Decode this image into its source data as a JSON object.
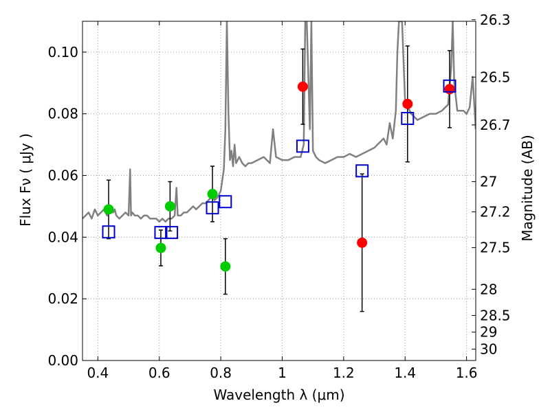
{
  "chart_data": {
    "type": "scatter",
    "xlabel": "Wavelength  λ (μm)",
    "ylabel": "Flux  Fν  ( μJy )",
    "ylabel_right": "Magnitude (AB)",
    "xlim": [
      0.35,
      1.63
    ],
    "ylim": [
      0.0,
      0.11
    ],
    "grid": true,
    "x_ticks": [
      0.4,
      0.6,
      0.8,
      1.0,
      1.2,
      1.4,
      1.6
    ],
    "x_tick_labels": [
      "0.4",
      "0.6",
      "0.8",
      "1",
      "1.2",
      "1.4",
      "1.6"
    ],
    "y_ticks": [
      0.0,
      0.02,
      0.04,
      0.06,
      0.08,
      0.1
    ],
    "y_tick_labels": [
      "0.00",
      "0.02",
      "0.04",
      "0.06",
      "0.08",
      "0.10"
    ],
    "right_ticks": [
      {
        "label": "26.3",
        "flux": 0.1105
      },
      {
        "label": "26.5",
        "flux": 0.0919
      },
      {
        "label": "26.7",
        "flux": 0.0764
      },
      {
        "label": "27",
        "flux": 0.058
      },
      {
        "label": "27.2",
        "flux": 0.0482
      },
      {
        "label": "27.5",
        "flux": 0.0366
      },
      {
        "label": "28",
        "flux": 0.0231
      },
      {
        "label": "28.5",
        "flux": 0.0146
      },
      {
        "label": "29",
        "flux": 0.0092
      },
      {
        "label": "30",
        "flux": 0.0037
      }
    ],
    "colors": {
      "sed": "#808080",
      "green_points": "#00cc00",
      "red_points": "#ff0000",
      "model_boxes": "#0000cc",
      "error_bars": "#000000",
      "grid": "#999999"
    },
    "sed_curve": {
      "x": [
        0.35,
        0.36,
        0.37,
        0.38,
        0.39,
        0.4,
        0.41,
        0.42,
        0.43,
        0.44,
        0.45,
        0.455,
        0.46,
        0.47,
        0.48,
        0.49,
        0.5,
        0.505,
        0.508,
        0.512,
        0.52,
        0.53,
        0.54,
        0.55,
        0.56,
        0.57,
        0.58,
        0.59,
        0.6,
        0.61,
        0.62,
        0.63,
        0.64,
        0.65,
        0.656,
        0.66,
        0.67,
        0.68,
        0.69,
        0.7,
        0.71,
        0.72,
        0.73,
        0.74,
        0.75,
        0.76,
        0.77,
        0.78,
        0.79,
        0.8,
        0.81,
        0.815,
        0.82,
        0.825,
        0.83,
        0.835,
        0.84,
        0.845,
        0.85,
        0.86,
        0.87,
        0.88,
        0.89,
        0.9,
        0.92,
        0.94,
        0.95,
        0.96,
        0.97,
        0.98,
        1.0,
        1.02,
        1.04,
        1.06,
        1.07,
        1.075,
        1.08,
        1.09,
        1.095,
        1.1,
        1.11,
        1.12,
        1.14,
        1.16,
        1.18,
        1.2,
        1.22,
        1.24,
        1.26,
        1.28,
        1.3,
        1.32,
        1.33,
        1.34,
        1.35,
        1.36,
        1.37,
        1.375,
        1.38,
        1.39,
        1.4,
        1.42,
        1.44,
        1.46,
        1.48,
        1.5,
        1.52,
        1.54,
        1.55,
        1.555,
        1.56,
        1.57,
        1.58,
        1.59,
        1.6,
        1.61,
        1.62,
        1.63
      ],
      "y": [
        0.046,
        0.047,
        0.048,
        0.046,
        0.049,
        0.047,
        0.048,
        0.049,
        0.047,
        0.05,
        0.048,
        0.049,
        0.047,
        0.046,
        0.047,
        0.048,
        0.047,
        0.062,
        0.047,
        0.048,
        0.047,
        0.047,
        0.046,
        0.047,
        0.047,
        0.046,
        0.046,
        0.046,
        0.045,
        0.046,
        0.045,
        0.046,
        0.046,
        0.047,
        0.056,
        0.047,
        0.047,
        0.048,
        0.048,
        0.049,
        0.05,
        0.049,
        0.05,
        0.051,
        0.051,
        0.052,
        0.053,
        0.052,
        0.053,
        0.055,
        0.062,
        0.075,
        0.11,
        0.08,
        0.065,
        0.068,
        0.063,
        0.07,
        0.064,
        0.066,
        0.064,
        0.063,
        0.064,
        0.064,
        0.065,
        0.066,
        0.065,
        0.064,
        0.075,
        0.066,
        0.065,
        0.065,
        0.066,
        0.066,
        0.07,
        0.11,
        0.11,
        0.075,
        0.11,
        0.068,
        0.066,
        0.065,
        0.064,
        0.065,
        0.066,
        0.066,
        0.067,
        0.066,
        0.067,
        0.068,
        0.069,
        0.071,
        0.072,
        0.07,
        0.077,
        0.072,
        0.081,
        0.1,
        0.11,
        0.11,
        0.084,
        0.08,
        0.078,
        0.079,
        0.08,
        0.08,
        0.081,
        0.083,
        0.095,
        0.11,
        0.09,
        0.081,
        0.081,
        0.081,
        0.08,
        0.082,
        0.092,
        0.075
      ]
    },
    "series": [
      {
        "marker": "circle",
        "color": "#00cc00",
        "points": [
          {
            "x": 0.435,
            "y": 0.049,
            "err": 0.0095
          },
          {
            "x": 0.605,
            "y": 0.0365,
            "err": 0.0058
          },
          {
            "x": 0.635,
            "y": 0.05,
            "err": 0.008
          },
          {
            "x": 0.773,
            "y": 0.054,
            "err": 0.009
          },
          {
            "x": 0.815,
            "y": 0.0305,
            "err": 0.009
          }
        ]
      },
      {
        "marker": "circle",
        "color": "#ff0000",
        "points": [
          {
            "x": 1.067,
            "y": 0.0888,
            "err": 0.0122
          },
          {
            "x": 1.26,
            "y": 0.0382,
            "err": 0.0223
          },
          {
            "x": 1.408,
            "y": 0.0832,
            "err": 0.0188
          },
          {
            "x": 1.545,
            "y": 0.088,
            "err": 0.0125
          }
        ]
      },
      {
        "marker": "open-square",
        "color": "#0000cc",
        "points": [
          {
            "x": 0.435,
            "y": 0.0417
          },
          {
            "x": 0.605,
            "y": 0.0415
          },
          {
            "x": 0.64,
            "y": 0.0415
          },
          {
            "x": 0.773,
            "y": 0.0495
          },
          {
            "x": 0.815,
            "y": 0.0515
          },
          {
            "x": 1.067,
            "y": 0.0695
          },
          {
            "x": 1.26,
            "y": 0.0615
          },
          {
            "x": 1.408,
            "y": 0.0785
          },
          {
            "x": 1.545,
            "y": 0.089
          }
        ]
      }
    ]
  }
}
